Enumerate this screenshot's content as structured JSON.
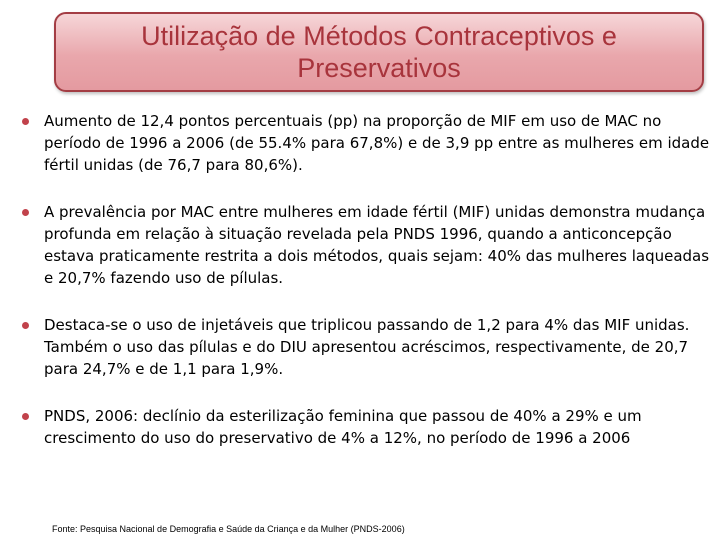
{
  "title": {
    "line1": "Utilização de Métodos Contraceptivos e",
    "line2": "Preservativos"
  },
  "bullets": [
    {
      "text": "Aumento de 12,4 pontos percentuais (pp) na proporção de MIF em uso de MAC no período de 1996 a 2006 (de 55.4% para 67,8%) e de 3,9 pp entre as mulheres em idade fértil unidas (de 76,7 para 80,6%)."
    },
    {
      "text": "A prevalência por MAC entre mulheres em idade fértil (MIF) unidas demonstra mudança profunda em relação à situação revelada pela PNDS 1996, quando a anticoncepção estava praticamente restrita a dois métodos, quais sejam: 40% das mulheres laqueadas e 20,7% fazendo uso de pílulas."
    },
    {
      "text": "Destaca-se o uso de injetáveis que triplicou passando de 1,2 para 4% das MIF unidas. Também o uso das pílulas e do DIU apresentou acréscimos, respectivamente, de 20,7 para 24,7% e de 1,1 para 1,9%."
    },
    {
      "text": "PNDS, 2006: declínio da esterilização feminina que passou de 40% a 29% e um crescimento do uso do preservativo de 4% a 12%, no período de 1996 a 2006"
    }
  ],
  "source": "Fonte: Pesquisa Nacional de Demografia e Saúde da Criança e da Mulher (PNDS-2006)",
  "colors": {
    "title_text": "#a8343c",
    "title_border": "#a33d44",
    "bullet_dot": "#c1424b"
  }
}
